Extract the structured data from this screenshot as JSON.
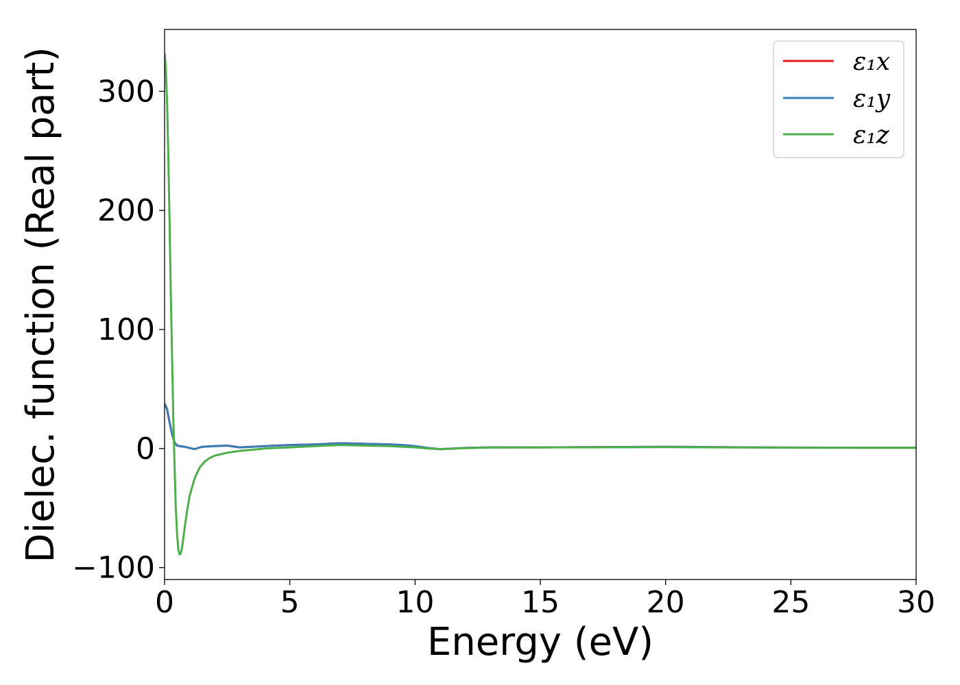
{
  "chart_data": {
    "type": "line",
    "title": "",
    "xlabel": "Energy (eV)",
    "ylabel": "Dielec. function (Real part)",
    "xlim": [
      0,
      30
    ],
    "ylim": [
      -110,
      352
    ],
    "xticks": [
      0,
      5,
      10,
      15,
      20,
      25,
      30
    ],
    "xtick_labels": [
      "0",
      "5",
      "10",
      "15",
      "20",
      "25",
      "30"
    ],
    "yticks": [
      -100,
      0,
      100,
      200,
      300
    ],
    "ytick_labels": [
      "−100",
      "0",
      "100",
      "200",
      "300"
    ],
    "grid": false,
    "legend_position": "top-right",
    "series": [
      {
        "name": "ε₁x",
        "color": "#e41a1c",
        "x": [
          0,
          0.1,
          0.2,
          0.3,
          0.4,
          0.5,
          0.6,
          0.8,
          1.0,
          1.2,
          1.5,
          2.0,
          2.5,
          3.0,
          4.0,
          5.0,
          6.0,
          7.0,
          8.0,
          9.0,
          9.5,
          10.0,
          10.5,
          11.0,
          12.0,
          13.0,
          14.0,
          15.0,
          17.0,
          20.0,
          22.0,
          25.0,
          28.0,
          30.0
        ],
        "y": [
          38,
          33,
          22,
          12,
          5,
          2.5,
          2,
          1.5,
          0.5,
          -0.5,
          1.5,
          2,
          2.5,
          1,
          2,
          3,
          3.5,
          4.5,
          4,
          3.5,
          3,
          2,
          0.5,
          -0.5,
          0.5,
          1,
          1,
          1,
          1.2,
          1.5,
          1.2,
          0.8,
          0.7,
          0.7
        ]
      },
      {
        "name": "ε₁y",
        "color": "#377eb8",
        "x": [
          0,
          0.1,
          0.2,
          0.3,
          0.4,
          0.5,
          0.6,
          0.8,
          1.0,
          1.2,
          1.5,
          2.0,
          2.5,
          3.0,
          4.0,
          5.0,
          6.0,
          7.0,
          8.0,
          9.0,
          9.5,
          10.0,
          10.5,
          11.0,
          12.0,
          13.0,
          14.0,
          15.0,
          17.0,
          20.0,
          22.0,
          25.0,
          28.0,
          30.0
        ],
        "y": [
          38,
          33,
          22,
          12,
          5,
          2.5,
          2,
          1.5,
          0.5,
          -0.5,
          1.5,
          2,
          2.5,
          1,
          2,
          3,
          3.5,
          4.5,
          4,
          3.5,
          3,
          2,
          0.5,
          -0.5,
          0.5,
          1,
          1,
          1,
          1.2,
          1.5,
          1.2,
          0.8,
          0.7,
          0.7
        ]
      },
      {
        "name": "ε₁z",
        "color": "#4daf4a",
        "x": [
          0,
          0.05,
          0.1,
          0.15,
          0.2,
          0.25,
          0.3,
          0.35,
          0.4,
          0.45,
          0.5,
          0.55,
          0.6,
          0.65,
          0.7,
          0.75,
          0.8,
          0.9,
          1.0,
          1.2,
          1.4,
          1.6,
          1.8,
          2.0,
          2.5,
          3.0,
          4.0,
          5.0,
          6.0,
          7.0,
          8.0,
          9.0,
          10.0,
          10.5,
          11.0,
          12.0,
          13.0,
          15.0,
          17.0,
          20.0,
          22.0,
          25.0,
          28.0,
          30.0
        ],
        "y": [
          332,
          320,
          290,
          245,
          190,
          130,
          75,
          25,
          -15,
          -50,
          -72,
          -85,
          -89,
          -88,
          -83,
          -75,
          -67,
          -52,
          -40,
          -25,
          -16,
          -11,
          -8,
          -6,
          -3.5,
          -2,
          0,
          1,
          2,
          3,
          2.5,
          2,
          1,
          0,
          -0.5,
          0.3,
          0.8,
          1,
          1,
          1.2,
          1,
          0.7,
          0.6,
          0.6
        ]
      }
    ]
  }
}
